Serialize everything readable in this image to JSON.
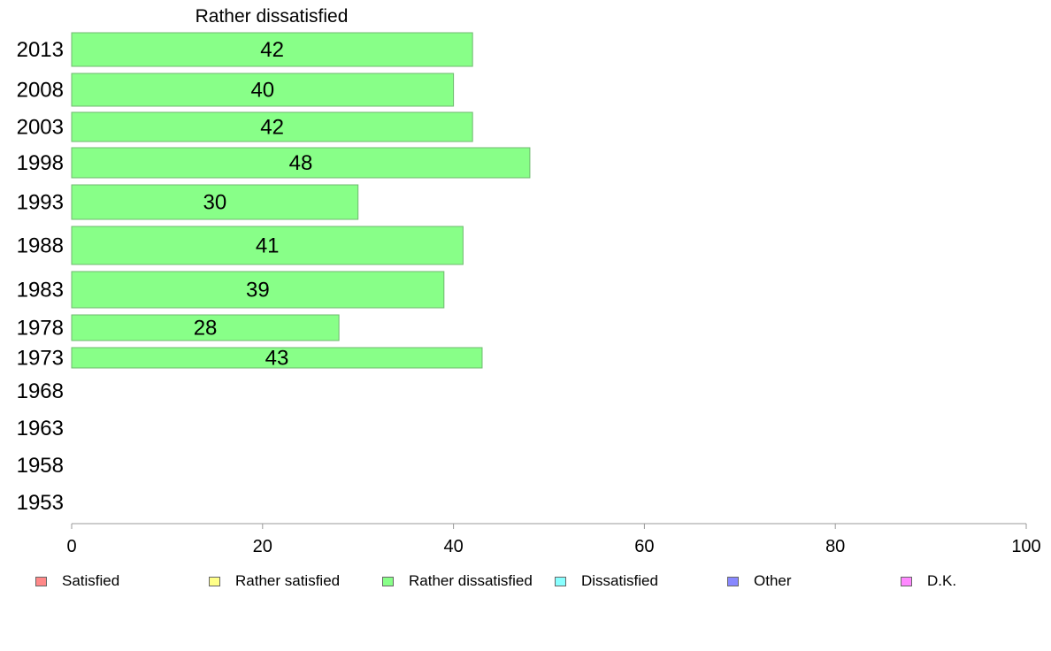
{
  "chart_data": {
    "type": "bar",
    "orientation": "horizontal",
    "title": "Rather dissatisfied",
    "categories": [
      "2013",
      "2008",
      "2003",
      "1998",
      "1993",
      "1988",
      "1983",
      "1978",
      "1973",
      "1968",
      "1963",
      "1958",
      "1953"
    ],
    "series": [
      {
        "name": "Rather dissatisfied",
        "color": "#88ff88",
        "values": [
          42,
          40,
          42,
          48,
          30,
          41,
          39,
          28,
          43,
          null,
          null,
          null,
          null
        ]
      }
    ],
    "xlim": [
      0,
      100
    ],
    "xticks": [
      "0",
      "20",
      "40",
      "60",
      "80",
      "100"
    ],
    "grid": false,
    "legend_position": "bottom"
  },
  "legend": [
    {
      "label": "Satisfied",
      "color": "#ff8888"
    },
    {
      "label": "Rather satisfied",
      "color": "#ffff88"
    },
    {
      "label": "Rather dissatisfied",
      "color": "#88ff88"
    },
    {
      "label": "Dissatisfied",
      "color": "#88ffff"
    },
    {
      "label": "Other",
      "color": "#8888ff"
    },
    {
      "label": "D.K.",
      "color": "#ff88ff"
    }
  ]
}
